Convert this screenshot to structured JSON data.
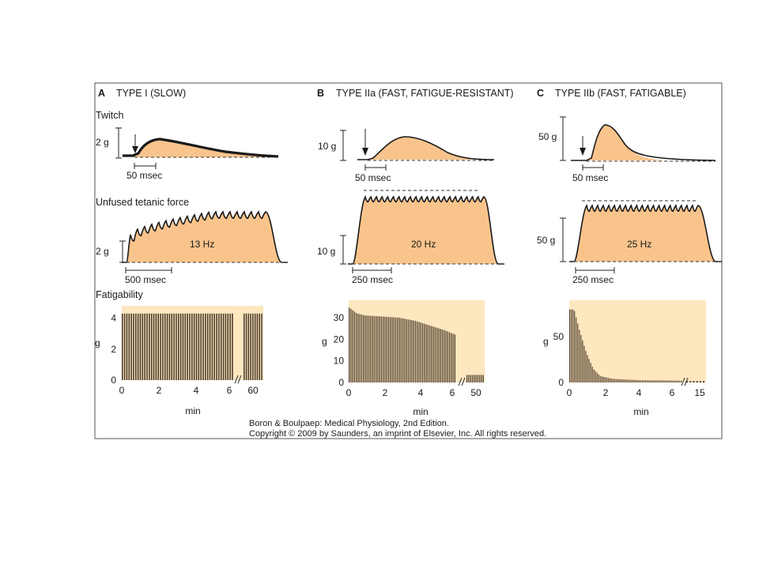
{
  "panels": [
    {
      "letter": "A",
      "title": "TYPE I (SLOW)"
    },
    {
      "letter": "B",
      "title": "TYPE IIa (FAST, FATIGUE-RESISTANT)"
    },
    {
      "letter": "C",
      "title": "TYPE IIb (FAST, FATIGABLE)"
    }
  ],
  "rows": {
    "twitch": "Twitch",
    "tetanic": "Unfused tetanic force",
    "fatigue": "Fatigability"
  },
  "twitch": {
    "scales": [
      "2 g",
      "10 g",
      "50 g"
    ],
    "timebars": [
      "50 msec",
      "50 msec",
      "50 msec"
    ]
  },
  "tetanic": {
    "scales": [
      "2 g",
      "10 g",
      "50 g"
    ],
    "frequencies": [
      "13 Hz",
      "20 Hz",
      "25 Hz"
    ],
    "timebars": [
      "500 msec",
      "250 msec",
      "250 msec"
    ]
  },
  "fatigue_axes": {
    "ylabel": "g",
    "xlabel": "min",
    "A": {
      "yticks": [
        "0",
        "2",
        "4"
      ],
      "xticks": [
        "0",
        "2",
        "4",
        "6",
        "60"
      ]
    },
    "B": {
      "yticks": [
        "0",
        "10",
        "20",
        "30"
      ],
      "xticks": [
        "0",
        "2",
        "4",
        "6",
        "50"
      ]
    },
    "C": {
      "yticks": [
        "0",
        "50"
      ],
      "xticks": [
        "0",
        "2",
        "4",
        "6",
        "15"
      ]
    }
  },
  "chart_data": [
    {
      "type": "bar",
      "panel": "A",
      "xlabel": "min",
      "ylabel": "g",
      "ylim": [
        0,
        4.8
      ],
      "segments": [
        {
          "x_range": [
            0,
            6.2
          ],
          "bar_count": 50,
          "value": 4.3
        },
        {
          "x_range": [
            58,
            62
          ],
          "bar_count": 9,
          "value": 4.3
        }
      ]
    },
    {
      "type": "bar",
      "panel": "B",
      "xlabel": "min",
      "ylabel": "g",
      "ylim": [
        0,
        38
      ],
      "segments": [
        {
          "x_range": [
            0,
            6.4
          ],
          "bar_count": 60,
          "profile": [
            [
              0,
              35
            ],
            [
              0.5,
              32
            ],
            [
              1,
              31
            ],
            [
              2,
              30.5
            ],
            [
              3,
              30
            ],
            [
              4,
              28.5
            ],
            [
              5,
              26
            ],
            [
              5.8,
              24
            ],
            [
              6.4,
              22
            ]
          ]
        },
        {
          "x_range": [
            48,
            52
          ],
          "bar_count": 10,
          "profile": [
            [
              48,
              3.5
            ],
            [
              52,
              3.5
            ]
          ]
        }
      ]
    },
    {
      "type": "bar",
      "panel": "C",
      "xlabel": "min",
      "ylabel": "g",
      "ylim": [
        0,
        90
      ],
      "segments": [
        {
          "x_range": [
            0,
            6.5
          ],
          "bar_count": 70,
          "profile": [
            [
              0,
              80
            ],
            [
              0.3,
              80
            ],
            [
              0.6,
              58
            ],
            [
              1,
              33
            ],
            [
              1.4,
              15
            ],
            [
              1.8,
              7
            ],
            [
              2.5,
              4
            ],
            [
              4,
              2.5
            ],
            [
              6.5,
              2
            ]
          ]
        },
        {
          "x_range": [
            14,
            15.5
          ],
          "bar_count": 6,
          "profile": [
            [
              14,
              1.5
            ],
            [
              15.5,
              1.5
            ]
          ]
        }
      ]
    }
  ],
  "credit": {
    "line1": "Boron & Boulpaep: Medical Physiology, 2nd Edition.",
    "line2": "Copyright © 2009 by Saunders, an imprint of Elsevier, Inc. All rights reserved."
  }
}
